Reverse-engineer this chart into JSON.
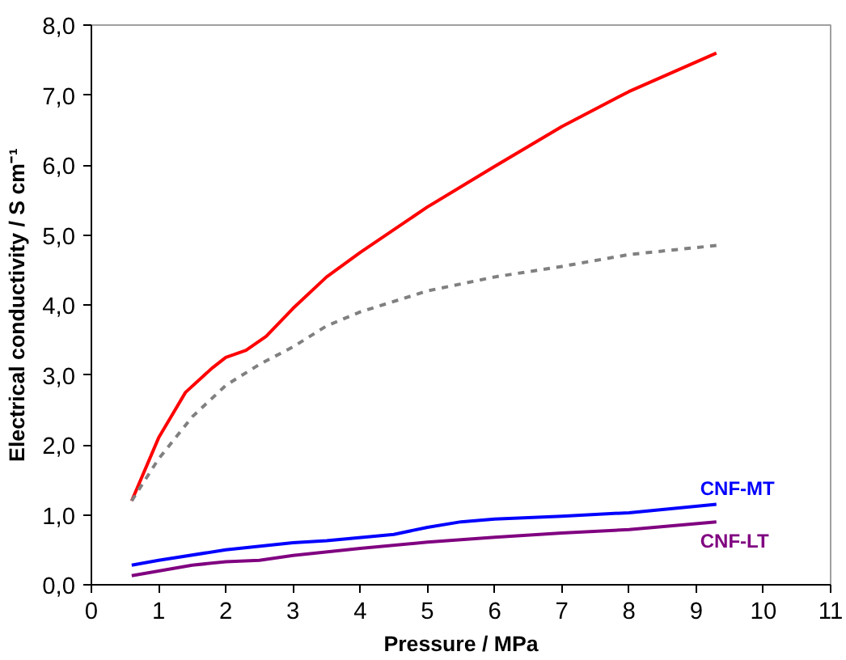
{
  "chart_data": {
    "type": "line",
    "xlabel": "Pressure / MPa",
    "ylabel": "Electrical conductivity / S cm⁻¹",
    "xlim": [
      0,
      11
    ],
    "xticks": [
      0,
      1,
      2,
      3,
      4,
      5,
      6,
      7,
      8,
      9,
      10,
      11
    ],
    "ylim": [
      0,
      8
    ],
    "yticks": [
      {
        "value": 0,
        "label": "0,0"
      },
      {
        "value": 1,
        "label": "1,0"
      },
      {
        "value": 2,
        "label": "2,0"
      },
      {
        "value": 3,
        "label": "3,0"
      },
      {
        "value": 4,
        "label": "4,0"
      },
      {
        "value": 5,
        "label": "5,0"
      },
      {
        "value": 6,
        "label": "6,0"
      },
      {
        "value": 7,
        "label": "7,0"
      },
      {
        "value": 8,
        "label": "8,0"
      }
    ],
    "grid": false,
    "marker": "none",
    "series": [
      {
        "color": "#ff0000",
        "line_style": "solid",
        "x": [
          0.6,
          1.0,
          1.4,
          1.8,
          2.0,
          2.3,
          2.6,
          3.0,
          3.5,
          4.0,
          5.0,
          6.0,
          7.0,
          8.0,
          9.3
        ],
        "values": [
          1.2,
          2.1,
          2.75,
          3.1,
          3.25,
          3.35,
          3.55,
          3.95,
          4.4,
          4.75,
          5.4,
          5.98,
          6.55,
          7.05,
          7.6
        ]
      },
      {
        "color": "#808080",
        "line_style": "dashed",
        "x": [
          0.6,
          1.0,
          1.5,
          2.0,
          2.5,
          3.0,
          3.5,
          4.0,
          5.0,
          6.0,
          7.0,
          8.0,
          9.3
        ],
        "values": [
          1.2,
          1.8,
          2.4,
          2.85,
          3.15,
          3.4,
          3.7,
          3.9,
          4.2,
          4.4,
          4.55,
          4.72,
          4.85
        ]
      },
      {
        "name": "CNF-MT",
        "color": "#0000ff",
        "line_style": "solid",
        "x": [
          0.6,
          1.0,
          2.0,
          3.0,
          3.5,
          4.5,
          5.0,
          5.5,
          6.0,
          7.0,
          8.0,
          9.3
        ],
        "values": [
          0.28,
          0.35,
          0.5,
          0.6,
          0.63,
          0.72,
          0.82,
          0.9,
          0.94,
          0.98,
          1.03,
          1.15
        ]
      },
      {
        "name": "CNF-LT",
        "color": "#800080",
        "line_style": "solid",
        "x": [
          0.6,
          1.5,
          2.0,
          2.5,
          3.0,
          4.0,
          5.0,
          6.0,
          7.0,
          8.0,
          9.3
        ],
        "values": [
          0.13,
          0.28,
          0.33,
          0.35,
          0.42,
          0.52,
          0.61,
          0.68,
          0.74,
          0.79,
          0.9
        ]
      }
    ]
  }
}
